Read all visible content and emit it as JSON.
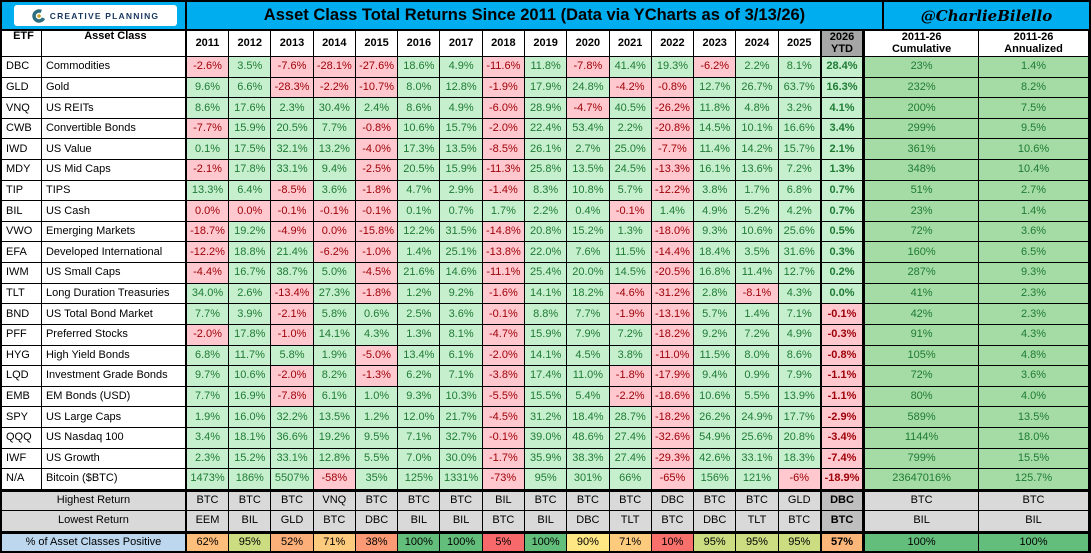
{
  "banner": {
    "logo_text": "CREATIVE PLANNING",
    "title": "Asset Class Total Returns Since 2011 (Data via YCharts as of 3/13/26)",
    "handle": "@CharlieBilello",
    "bg_color": "#00AEEF"
  },
  "colors": {
    "positive_bg": "#C6EFCE",
    "positive_text": "#1E7B34",
    "negative_bg": "#FFC7CE",
    "negative_text": "#9C0006",
    "right_cols_bg": "#A5DBA5",
    "summary_gray": "#D9D9D9",
    "ytd_header_gray": "#A6A6A6",
    "ytd_summary_gray": "#BFBFBF",
    "pct_label_blue": "#BDD7EE"
  },
  "chart_data": {
    "type": "table",
    "title": "Asset Class Total Returns Since 2011 (Data via YCharts as of 3/13/26)",
    "columns": {
      "etf_label": "ETF",
      "asset_class_label": "Asset Class",
      "years": [
        "2011",
        "2012",
        "2013",
        "2014",
        "2015",
        "2016",
        "2017",
        "2018",
        "2019",
        "2020",
        "2021",
        "2022",
        "2023",
        "2024",
        "2025"
      ],
      "ytd": [
        "2026",
        "YTD"
      ],
      "cumulative": [
        "2011-26",
        "Cumulative"
      ],
      "annualized": [
        "2011-26",
        "Annualized"
      ]
    },
    "rows": [
      {
        "etf": "DBC",
        "name": "Commodities",
        "vals": [
          "-2.6%",
          "3.5%",
          "-7.6%",
          "-28.1%",
          "-27.6%",
          "18.6%",
          "4.9%",
          "-11.6%",
          "11.8%",
          "-7.8%",
          "41.4%",
          "19.3%",
          "-6.2%",
          "2.2%",
          "8.1%"
        ],
        "ytd": "28.4%",
        "cum": "23%",
        "ann": "1.4%"
      },
      {
        "etf": "GLD",
        "name": "Gold",
        "vals": [
          "9.6%",
          "6.6%",
          "-28.3%",
          "-2.2%",
          "-10.7%",
          "8.0%",
          "12.8%",
          "-1.9%",
          "17.9%",
          "24.8%",
          "-4.2%",
          "-0.8%",
          "12.7%",
          "26.7%",
          "63.7%"
        ],
        "ytd": "16.3%",
        "cum": "232%",
        "ann": "8.2%"
      },
      {
        "etf": "VNQ",
        "name": "US REITs",
        "vals": [
          "8.6%",
          "17.6%",
          "2.3%",
          "30.4%",
          "2.4%",
          "8.6%",
          "4.9%",
          "-6.0%",
          "28.9%",
          "-4.7%",
          "40.5%",
          "-26.2%",
          "11.8%",
          "4.8%",
          "3.2%"
        ],
        "ytd": "4.1%",
        "cum": "200%",
        "ann": "7.5%"
      },
      {
        "etf": "CWB",
        "name": "Convertible Bonds",
        "vals": [
          "-7.7%",
          "15.9%",
          "20.5%",
          "7.7%",
          "-0.8%",
          "10.6%",
          "15.7%",
          "-2.0%",
          "22.4%",
          "53.4%",
          "2.2%",
          "-20.8%",
          "14.5%",
          "10.1%",
          "16.6%"
        ],
        "ytd": "3.4%",
        "cum": "299%",
        "ann": "9.5%"
      },
      {
        "etf": "IWD",
        "name": "US Value",
        "vals": [
          "0.1%",
          "17.5%",
          "32.1%",
          "13.2%",
          "-4.0%",
          "17.3%",
          "13.5%",
          "-8.5%",
          "26.1%",
          "2.7%",
          "25.0%",
          "-7.7%",
          "11.4%",
          "14.2%",
          "15.7%"
        ],
        "ytd": "2.1%",
        "cum": "361%",
        "ann": "10.6%"
      },
      {
        "etf": "MDY",
        "name": "US Mid Caps",
        "vals": [
          "-2.1%",
          "17.8%",
          "33.1%",
          "9.4%",
          "-2.5%",
          "20.5%",
          "15.9%",
          "-11.3%",
          "25.8%",
          "13.5%",
          "24.5%",
          "-13.3%",
          "16.1%",
          "13.6%",
          "7.2%"
        ],
        "ytd": "1.3%",
        "cum": "348%",
        "ann": "10.4%"
      },
      {
        "etf": "TIP",
        "name": "TIPS",
        "vals": [
          "13.3%",
          "6.4%",
          "-8.5%",
          "3.6%",
          "-1.8%",
          "4.7%",
          "2.9%",
          "-1.4%",
          "8.3%",
          "10.8%",
          "5.7%",
          "-12.2%",
          "3.8%",
          "1.7%",
          "6.8%"
        ],
        "ytd": "0.7%",
        "cum": "51%",
        "ann": "2.7%"
      },
      {
        "etf": "BIL",
        "name": "US Cash",
        "vals": [
          "0.0%",
          "0.0%",
          "-0.1%",
          "-0.1%",
          "-0.1%",
          "0.1%",
          "0.7%",
          "1.7%",
          "2.2%",
          "0.4%",
          "-0.1%",
          "1.4%",
          "4.9%",
          "5.2%",
          "4.2%"
        ],
        "red_zeros": [
          0,
          1
        ],
        "ytd": "0.7%",
        "cum": "23%",
        "ann": "1.4%"
      },
      {
        "etf": "VWO",
        "name": "Emerging Markets",
        "vals": [
          "-18.7%",
          "19.2%",
          "-4.9%",
          "0.0%",
          "-15.8%",
          "12.2%",
          "31.5%",
          "-14.8%",
          "20.8%",
          "15.2%",
          "1.3%",
          "-18.0%",
          "9.3%",
          "10.6%",
          "25.6%"
        ],
        "red_zeros": [
          3
        ],
        "ytd": "0.5%",
        "cum": "72%",
        "ann": "3.6%"
      },
      {
        "etf": "EFA",
        "name": "Developed International",
        "vals": [
          "-12.2%",
          "18.8%",
          "21.4%",
          "-6.2%",
          "-1.0%",
          "1.4%",
          "25.1%",
          "-13.8%",
          "22.0%",
          "7.6%",
          "11.5%",
          "-14.4%",
          "18.4%",
          "3.5%",
          "31.6%"
        ],
        "ytd": "0.3%",
        "cum": "160%",
        "ann": "6.5%"
      },
      {
        "etf": "IWM",
        "name": "US Small Caps",
        "vals": [
          "-4.4%",
          "16.7%",
          "38.7%",
          "5.0%",
          "-4.5%",
          "21.6%",
          "14.6%",
          "-11.1%",
          "25.4%",
          "20.0%",
          "14.5%",
          "-20.5%",
          "16.8%",
          "11.4%",
          "12.7%"
        ],
        "ytd": "0.2%",
        "cum": "287%",
        "ann": "9.3%"
      },
      {
        "etf": "TLT",
        "name": "Long Duration Treasuries",
        "vals": [
          "34.0%",
          "2.6%",
          "-13.4%",
          "27.3%",
          "-1.8%",
          "1.2%",
          "9.2%",
          "-1.6%",
          "14.1%",
          "18.2%",
          "-4.6%",
          "-31.2%",
          "2.8%",
          "-8.1%",
          "4.3%"
        ],
        "ytd": "0.0%",
        "cum": "41%",
        "ann": "2.3%"
      },
      {
        "etf": "BND",
        "name": "US Total Bond Market",
        "vals": [
          "7.7%",
          "3.9%",
          "-2.1%",
          "5.8%",
          "0.6%",
          "2.5%",
          "3.6%",
          "-0.1%",
          "8.8%",
          "7.7%",
          "-1.9%",
          "-13.1%",
          "5.7%",
          "1.4%",
          "7.1%"
        ],
        "ytd": "-0.1%",
        "cum": "42%",
        "ann": "2.3%"
      },
      {
        "etf": "PFF",
        "name": "Preferred Stocks",
        "vals": [
          "-2.0%",
          "17.8%",
          "-1.0%",
          "14.1%",
          "4.3%",
          "1.3%",
          "8.1%",
          "-4.7%",
          "15.9%",
          "7.9%",
          "7.2%",
          "-18.2%",
          "9.2%",
          "7.2%",
          "4.9%"
        ],
        "ytd": "-0.3%",
        "cum": "91%",
        "ann": "4.3%"
      },
      {
        "etf": "HYG",
        "name": "High Yield Bonds",
        "vals": [
          "6.8%",
          "11.7%",
          "5.8%",
          "1.9%",
          "-5.0%",
          "13.4%",
          "6.1%",
          "-2.0%",
          "14.1%",
          "4.5%",
          "3.8%",
          "-11.0%",
          "11.5%",
          "8.0%",
          "8.6%"
        ],
        "ytd": "-0.8%",
        "cum": "105%",
        "ann": "4.8%"
      },
      {
        "etf": "LQD",
        "name": "Investment Grade Bonds",
        "vals": [
          "9.7%",
          "10.6%",
          "-2.0%",
          "8.2%",
          "-1.3%",
          "6.2%",
          "7.1%",
          "-3.8%",
          "17.4%",
          "11.0%",
          "-1.8%",
          "-17.9%",
          "9.4%",
          "0.9%",
          "7.9%"
        ],
        "ytd": "-1.1%",
        "cum": "72%",
        "ann": "3.6%"
      },
      {
        "etf": "EMB",
        "name": "EM Bonds (USD)",
        "vals": [
          "7.7%",
          "16.9%",
          "-7.8%",
          "6.1%",
          "1.0%",
          "9.3%",
          "10.3%",
          "-5.5%",
          "15.5%",
          "5.4%",
          "-2.2%",
          "-18.6%",
          "10.6%",
          "5.5%",
          "13.9%"
        ],
        "ytd": "-1.1%",
        "cum": "80%",
        "ann": "4.0%"
      },
      {
        "etf": "SPY",
        "name": "US Large Caps",
        "vals": [
          "1.9%",
          "16.0%",
          "32.2%",
          "13.5%",
          "1.2%",
          "12.0%",
          "21.7%",
          "-4.5%",
          "31.2%",
          "18.4%",
          "28.7%",
          "-18.2%",
          "26.2%",
          "24.9%",
          "17.7%"
        ],
        "ytd": "-2.9%",
        "cum": "589%",
        "ann": "13.5%"
      },
      {
        "etf": "QQQ",
        "name": "US Nasdaq 100",
        "vals": [
          "3.4%",
          "18.1%",
          "36.6%",
          "19.2%",
          "9.5%",
          "7.1%",
          "32.7%",
          "-0.1%",
          "39.0%",
          "48.6%",
          "27.4%",
          "-32.6%",
          "54.9%",
          "25.6%",
          "20.8%"
        ],
        "ytd": "-3.4%",
        "cum": "1144%",
        "ann": "18.0%"
      },
      {
        "etf": "IWF",
        "name": "US Growth",
        "vals": [
          "2.3%",
          "15.2%",
          "33.1%",
          "12.8%",
          "5.5%",
          "7.0%",
          "30.0%",
          "-1.7%",
          "35.9%",
          "38.3%",
          "27.4%",
          "-29.3%",
          "42.6%",
          "33.1%",
          "18.3%"
        ],
        "ytd": "-7.4%",
        "cum": "799%",
        "ann": "15.5%"
      },
      {
        "etf": "N/A",
        "name": "Bitcoin ($BTC)",
        "vals": [
          "1473%",
          "186%",
          "5507%",
          "-58%",
          "35%",
          "125%",
          "1331%",
          "-73%",
          "95%",
          "301%",
          "66%",
          "-65%",
          "156%",
          "121%",
          "-6%"
        ],
        "ytd": "-18.9%",
        "cum": "23647016%",
        "ann": "125.7%"
      }
    ],
    "summary": {
      "highest": {
        "label": "Highest Return",
        "vals": [
          "BTC",
          "BTC",
          "BTC",
          "VNQ",
          "BTC",
          "BTC",
          "BTC",
          "BIL",
          "BTC",
          "BTC",
          "BTC",
          "DBC",
          "BTC",
          "BTC",
          "GLD"
        ],
        "ytd": "DBC",
        "cum": "BTC",
        "ann": "BTC"
      },
      "lowest": {
        "label": "Lowest Return",
        "vals": [
          "EEM",
          "BIL",
          "GLD",
          "BTC",
          "DBC",
          "BIL",
          "BIL",
          "BTC",
          "BIL",
          "DBC",
          "TLT",
          "BTC",
          "DBC",
          "TLT",
          "BTC"
        ],
        "ytd": "BTC",
        "cum": "BIL",
        "ann": "BIL"
      },
      "pct_positive": {
        "label": "% of Asset Classes Positive",
        "vals": [
          "62%",
          "95%",
          "52%",
          "71%",
          "38%",
          "100%",
          "100%",
          "5%",
          "100%",
          "90%",
          "71%",
          "10%",
          "95%",
          "95%",
          "95%"
        ],
        "colors": [
          "#FDBE7B",
          "#CBDC81",
          "#FCAF78",
          "#FDCB7E",
          "#FB9A74",
          "#63BE7B",
          "#63BE7B",
          "#F8696B",
          "#63BE7B",
          "#FFE783",
          "#FDCB7E",
          "#F8706C",
          "#CBDC81",
          "#CBDC81",
          "#CBDC81"
        ],
        "ytd": "57%",
        "ytd_color": "#FCB67A",
        "cum": "100%",
        "cum_color": "#63BE7B",
        "ann": "100%",
        "ann_color": "#63BE7B"
      }
    }
  }
}
